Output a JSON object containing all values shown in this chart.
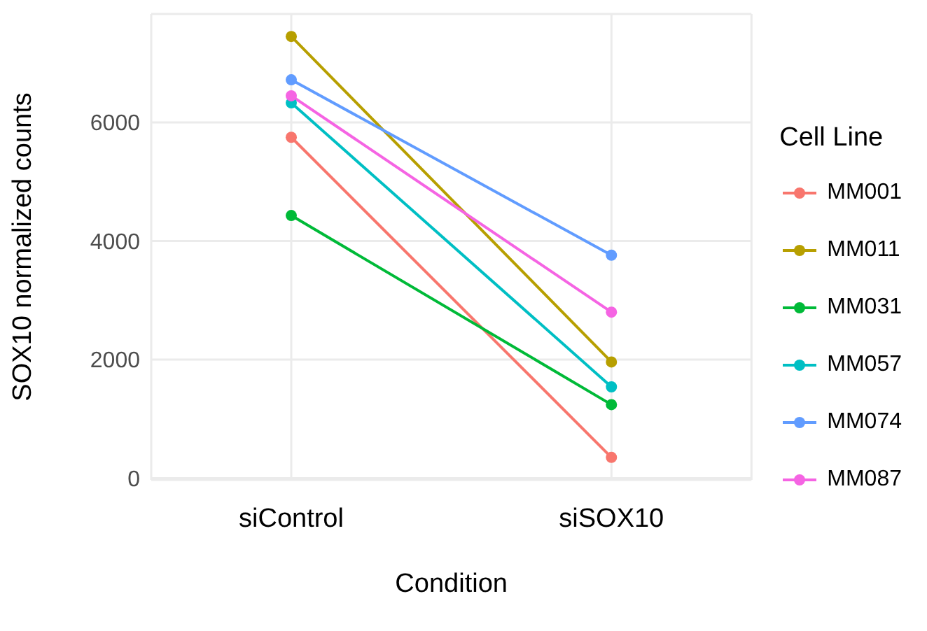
{
  "chart_data": {
    "type": "line",
    "xlabel": "Condition",
    "ylabel": "SOX10 normalized counts",
    "legend_title": "Cell Line",
    "categories": [
      "siControl",
      "siSOX10"
    ],
    "series": [
      {
        "name": "MM001",
        "color": "#f8766d",
        "values": [
          5750,
          350
        ]
      },
      {
        "name": "MM011",
        "color": "#b79f00",
        "values": [
          7450,
          1960
        ]
      },
      {
        "name": "MM031",
        "color": "#00ba38",
        "values": [
          4430,
          1240
        ]
      },
      {
        "name": "MM057",
        "color": "#00bfc4",
        "values": [
          6330,
          1540
        ]
      },
      {
        "name": "MM074",
        "color": "#619cff",
        "values": [
          6720,
          3760
        ]
      },
      {
        "name": "MM087",
        "color": "#f564e3",
        "values": [
          6450,
          2800
        ]
      }
    ],
    "ylim": [
      -30,
      7830
    ],
    "yticks": [
      0,
      2000,
      4000,
      6000
    ],
    "grid": true,
    "legend": "right",
    "marker": "circle"
  }
}
